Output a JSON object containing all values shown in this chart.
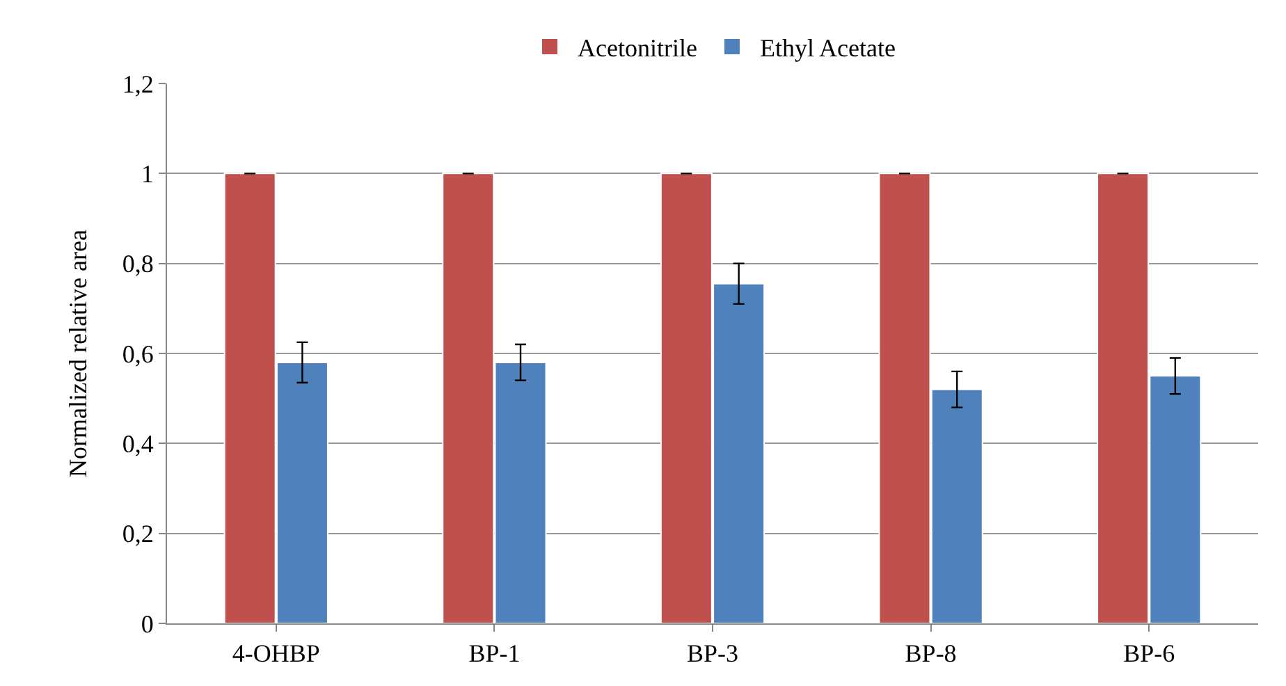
{
  "chart_data": {
    "type": "bar",
    "ylabel": "Normalized relative area",
    "categories": [
      "4-OHBP",
      "BP-1",
      "BP-3",
      "BP-8",
      "BP-6"
    ],
    "series": [
      {
        "name": "Acetonitrile",
        "color": "#c0504d",
        "values": [
          1,
          1,
          1,
          1,
          1
        ],
        "errors": [
          0,
          0,
          0,
          0,
          0
        ]
      },
      {
        "name": "Ethyl Acetate",
        "color": "#4f81bd",
        "values": [
          0.58,
          0.58,
          0.755,
          0.52,
          0.55
        ],
        "errors": [
          0.045,
          0.04,
          0.045,
          0.04,
          0.04
        ]
      }
    ],
    "ylim": [
      0,
      1.2
    ],
    "yticks": [
      0,
      {
        "value": 0.2,
        "label": "0,2"
      },
      {
        "value": 0.4,
        "label": "0,4"
      },
      {
        "value": 0.6,
        "label": "0,6"
      },
      {
        "value": 0.8,
        "label": "0,8"
      },
      1,
      {
        "value": 1.2,
        "label": "1,2"
      }
    ],
    "grid": "y",
    "legend": "top"
  }
}
